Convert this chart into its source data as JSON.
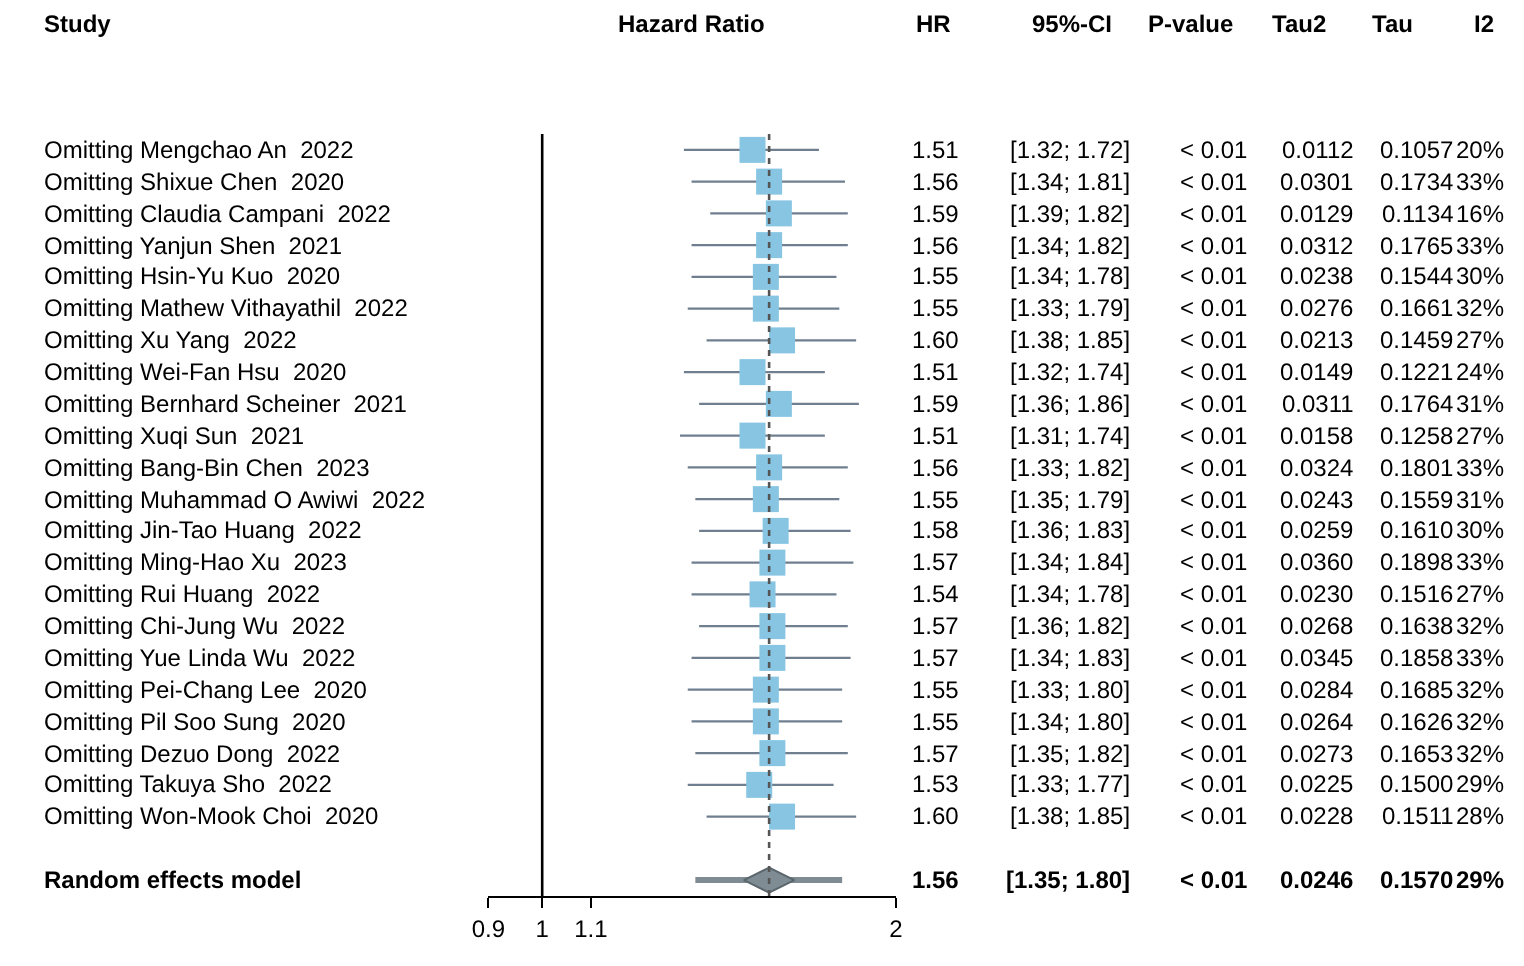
{
  "chart_data": [
    {
      "type": "scatter",
      "orientation": "horizontal",
      "ylabel": "Study",
      "xlabel": "Hazard Ratio",
      "annotations": [
        "HR"
      ],
      "categories": [
        "Omitting Mengchao An  2022",
        "Omitting Shixue Chen  2020",
        "Omitting Claudia Campani  2022",
        "Omitting Yanjun Shen  2021",
        "Omitting Hsin-Yu Kuo  2020",
        "Omitting Mathew Vithayathil  2022",
        "Omitting Xu Yang  2022",
        "Omitting Wei-Fan Hsu  2020",
        "Omitting Bernhard Scheiner  2021",
        "Omitting Xuqi Sun  2021",
        "Omitting Bang-Bin Chen  2023",
        "Omitting Muhammad O Awiwi  2022",
        "Omitting Jin-Tao Huang  2022",
        "Omitting Ming-Hao Xu  2023",
        "Omitting Rui Huang  2022",
        "Omitting Chi-Jung Wu  2022",
        "Omitting Yue Linda Wu  2022",
        "Omitting Pei-Chang Lee  2020",
        "Omitting Pil Soo Sung  2020",
        "Omitting Dezuo Dong  2022",
        "Omitting Takuya Sho  2022",
        "Omitting Won-Mook Choi  2020",
        null,
        "Random effects model"
      ],
      "series": [
        {
          "color": "#87c5e3",
          "marker": "square",
          "values": [
            1.51,
            1.56,
            1.59,
            1.56,
            1.55,
            1.55,
            1.6,
            1.51,
            1.59,
            1.51,
            1.56,
            1.55,
            1.58,
            1.57,
            1.54,
            1.57,
            1.57,
            1.55,
            1.55,
            1.57,
            1.53,
            1.6,
            null,
            null
          ],
          "errors": [
            [
              1.32,
              1.72
            ],
            [
              1.34,
              1.81
            ],
            [
              1.39,
              1.82
            ],
            [
              1.34,
              1.82
            ],
            [
              1.34,
              1.78
            ],
            [
              1.33,
              1.79
            ],
            [
              1.38,
              1.85
            ],
            [
              1.32,
              1.74
            ],
            [
              1.36,
              1.86
            ],
            [
              1.31,
              1.74
            ],
            [
              1.33,
              1.82
            ],
            [
              1.35,
              1.79
            ],
            [
              1.36,
              1.83
            ],
            [
              1.34,
              1.84
            ],
            [
              1.34,
              1.78
            ],
            [
              1.36,
              1.82
            ],
            [
              1.34,
              1.83
            ],
            [
              1.33,
              1.8
            ],
            [
              1.34,
              1.8
            ],
            [
              1.35,
              1.82
            ],
            [
              1.33,
              1.77
            ],
            [
              1.38,
              1.85
            ],
            null,
            null
          ]
        },
        {
          "color": "#7f8c93",
          "marker": "diamond",
          "values": [
            null,
            null,
            null,
            null,
            null,
            null,
            null,
            null,
            null,
            null,
            null,
            null,
            null,
            null,
            null,
            null,
            null,
            null,
            null,
            null,
            null,
            null,
            null,
            1.56
          ],
          "errors": [
            null,
            null,
            null,
            null,
            null,
            null,
            null,
            null,
            null,
            null,
            null,
            null,
            null,
            null,
            null,
            null,
            null,
            null,
            null,
            null,
            null,
            null,
            null,
            [
              1.35,
              1.8
            ]
          ]
        }
      ],
      "value_labels": [
        "1.51",
        "1.56",
        "1.59",
        "1.56",
        "1.55",
        "1.55",
        "1.60",
        "1.51",
        "1.59",
        "1.51",
        "1.56",
        "1.55",
        "1.58",
        "1.57",
        "1.54",
        "1.57",
        "1.57",
        "1.55",
        "1.55",
        "1.57",
        "1.53",
        "1.60",
        null,
        "1.56"
      ],
      "log": "x",
      "xlim": [
        0.9,
        2
      ],
      "xticks": [
        0.9,
        1,
        1.1,
        2
      ],
      "ref_lines": [
        {
          "axis": "x",
          "value": 1,
          "color": "#000000",
          "line_style": "solid"
        },
        {
          "axis": "x",
          "value": 1.56,
          "color": "#555555",
          "line_style": "dotted"
        }
      ]
    },
    {
      "type": "other",
      "title": "95%-CI",
      "categories": [
        "[1.32; 1.72]",
        "[1.34; 1.81]",
        "[1.39; 1.82]",
        "[1.34; 1.82]",
        "[1.34; 1.78]",
        "[1.33; 1.79]",
        "[1.38; 1.85]",
        "[1.32; 1.74]",
        "[1.36; 1.86]",
        "[1.31; 1.74]",
        "[1.33; 1.82]",
        "[1.35; 1.79]",
        "[1.36; 1.83]",
        "[1.34; 1.84]",
        "[1.34; 1.78]",
        "[1.36; 1.82]",
        "[1.34; 1.83]",
        "[1.33; 1.80]",
        "[1.34; 1.80]",
        "[1.35; 1.82]",
        "[1.33; 1.77]",
        "[1.38; 1.85]",
        null,
        "[1.35; 1.80]"
      ]
    },
    {
      "type": "other",
      "title": "P-value",
      "categories": [
        "< 0.01",
        "< 0.01",
        "< 0.01",
        "< 0.01",
        "< 0.01",
        "< 0.01",
        "< 0.01",
        "< 0.01",
        "< 0.01",
        "< 0.01",
        "< 0.01",
        "< 0.01",
        "< 0.01",
        "< 0.01",
        "< 0.01",
        "< 0.01",
        "< 0.01",
        "< 0.01",
        "< 0.01",
        "< 0.01",
        "< 0.01",
        "< 0.01",
        null,
        "< 0.01"
      ]
    },
    {
      "type": "other",
      "title": "Tau2",
      "categories": [
        "0.0112",
        "0.0301",
        "0.0129",
        "0.0312",
        "0.0238",
        "0.0276",
        "0.0213",
        "0.0149",
        "0.0311",
        "0.0158",
        "0.0324",
        "0.0243",
        "0.0259",
        "0.0360",
        "0.0230",
        "0.0268",
        "0.0345",
        "0.0284",
        "0.0264",
        "0.0273",
        "0.0225",
        "0.0228",
        null,
        "0.0246"
      ]
    },
    {
      "type": "other",
      "title": "Tau",
      "categories": [
        "0.1057",
        "0.1734",
        "0.1134",
        "0.1765",
        "0.1544",
        "0.1661",
        "0.1459",
        "0.1221",
        "0.1764",
        "0.1258",
        "0.1801",
        "0.1559",
        "0.1610",
        "0.1898",
        "0.1516",
        "0.1638",
        "0.1858",
        "0.1685",
        "0.1626",
        "0.1653",
        "0.1500",
        "0.1511",
        null,
        "0.1570"
      ]
    },
    {
      "type": "other",
      "title": "I2",
      "categories": [
        "20%",
        "33%",
        "16%",
        "33%",
        "30%",
        "32%",
        "27%",
        "24%",
        "31%",
        "27%",
        "33%",
        "31%",
        "30%",
        "33%",
        "27%",
        "32%",
        "33%",
        "32%",
        "32%",
        "32%",
        "29%",
        "28%",
        null,
        "29%"
      ]
    }
  ]
}
